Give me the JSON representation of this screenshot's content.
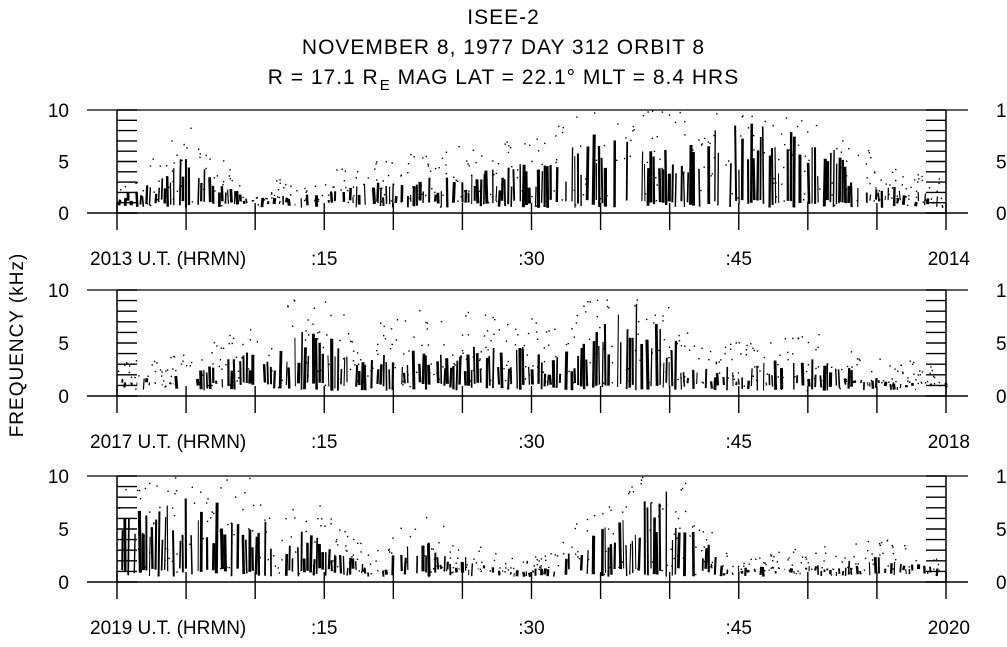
{
  "header": {
    "title": "ISEE-2",
    "line2": "NOVEMBER 8, 1977   DAY 312   ORBIT 8",
    "line3_prefix": "R = 17.1 R",
    "line3_subscript": "E",
    "line3_suffix": "  MAG LAT = 22.1°   MLT = 8.4 HRS"
  },
  "chart_data": [
    {
      "type": "heatmap",
      "ylabel": "FREQUENCY (kHz)",
      "ylim": [
        0,
        10
      ],
      "yticks": [
        "0",
        "5",
        "10"
      ],
      "xlim_minutes": [
        0,
        60
      ],
      "xtick_labels": [
        {
          "minute": 0,
          "label": "2013 U.T. (HRMN)"
        },
        {
          "minute": 15,
          "label": ":15"
        },
        {
          "minute": 30,
          "label": ":30"
        },
        {
          "minute": 45,
          "label": ":45"
        },
        {
          "minute": 60,
          "label": "2014"
        }
      ],
      "emission_envelope_khz": [
        [
          0,
          1.5
        ],
        [
          3,
          3.5
        ],
        [
          5,
          6.0
        ],
        [
          8,
          2.5
        ],
        [
          10,
          1.5
        ],
        [
          15,
          2.0
        ],
        [
          20,
          3.5
        ],
        [
          25,
          4.0
        ],
        [
          30,
          5.0
        ],
        [
          35,
          8.0
        ],
        [
          40,
          7.0
        ],
        [
          45,
          9.0
        ],
        [
          50,
          8.0
        ],
        [
          55,
          3.0
        ],
        [
          60,
          1.5
        ]
      ]
    },
    {
      "type": "heatmap",
      "ylabel": "FREQUENCY (kHz)",
      "ylim": [
        0,
        10
      ],
      "yticks": [
        "0",
        "5",
        "10"
      ],
      "xlim_minutes": [
        0,
        60
      ],
      "xtick_labels": [
        {
          "minute": 0,
          "label": "2017 U.T. (HRMN)"
        },
        {
          "minute": 15,
          "label": ":15"
        },
        {
          "minute": 30,
          "label": ":30"
        },
        {
          "minute": 45,
          "label": ":45"
        },
        {
          "minute": 60,
          "label": "2018"
        }
      ],
      "emission_envelope_khz": [
        [
          0,
          1.5
        ],
        [
          5,
          2.0
        ],
        [
          10,
          4.5
        ],
        [
          14,
          6.5
        ],
        [
          18,
          4.0
        ],
        [
          22,
          5.0
        ],
        [
          28,
          5.0
        ],
        [
          32,
          4.0
        ],
        [
          38,
          9.5
        ],
        [
          42,
          2.5
        ],
        [
          48,
          3.5
        ],
        [
          52,
          3.5
        ],
        [
          55,
          2.0
        ],
        [
          60,
          1.0
        ]
      ]
    },
    {
      "type": "heatmap",
      "ylabel": "FREQUENCY (kHz)",
      "ylim": [
        0,
        10
      ],
      "yticks": [
        "0",
        "5",
        "10"
      ],
      "xlim_minutes": [
        0,
        60
      ],
      "xtick_labels": [
        {
          "minute": 0,
          "label": "2019 U.T. (HRMN)"
        },
        {
          "minute": 15,
          "label": ":15"
        },
        {
          "minute": 30,
          "label": ":30"
        },
        {
          "minute": 45,
          "label": ":45"
        },
        {
          "minute": 60,
          "label": "2020"
        }
      ],
      "emission_envelope_khz": [
        [
          0,
          7.0
        ],
        [
          5,
          8.0
        ],
        [
          8,
          7.5
        ],
        [
          12,
          5.0
        ],
        [
          15,
          4.5
        ],
        [
          18,
          1.5
        ],
        [
          22,
          4.0
        ],
        [
          27,
          1.5
        ],
        [
          30,
          0.7
        ],
        [
          33,
          3.0
        ],
        [
          37,
          7.0
        ],
        [
          40,
          9.0
        ],
        [
          44,
          1.5
        ],
        [
          50,
          1.5
        ],
        [
          55,
          2.5
        ],
        [
          60,
          1.5
        ]
      ]
    }
  ]
}
